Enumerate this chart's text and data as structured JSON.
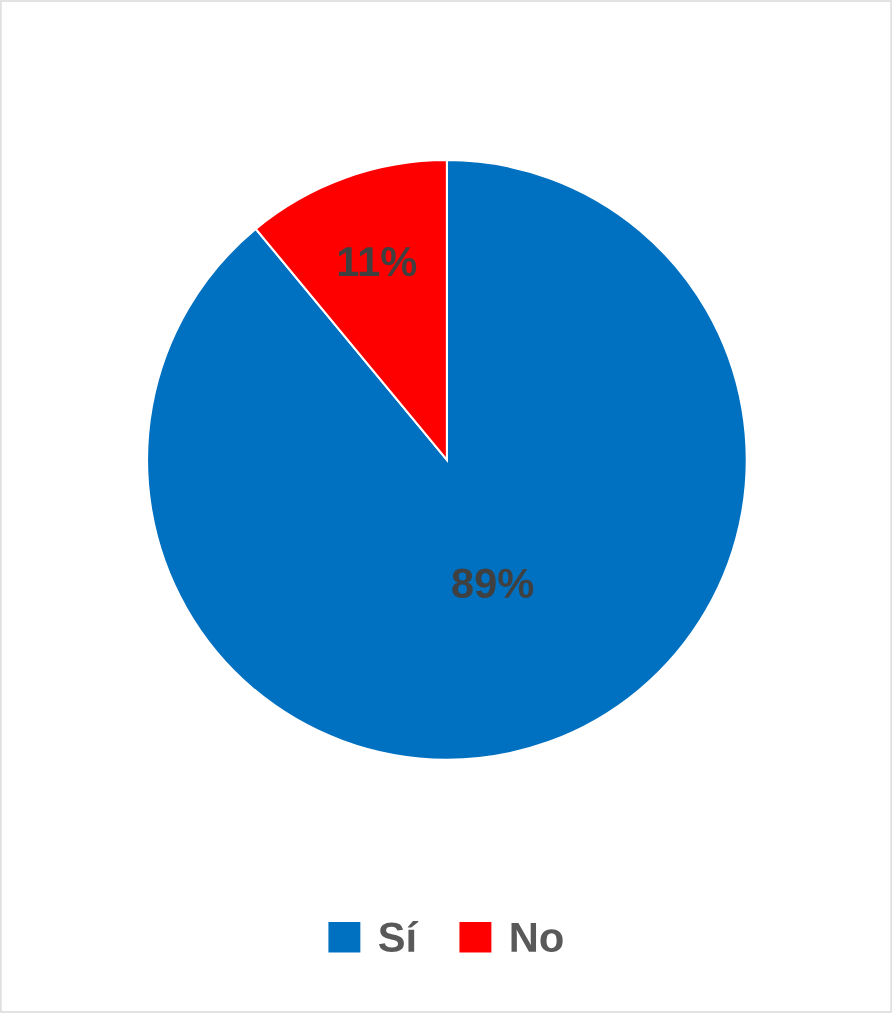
{
  "chart_data": {
    "type": "pie",
    "categories": [
      "Sí",
      "No"
    ],
    "values": [
      89,
      11
    ],
    "colors": [
      "#0070c0",
      "#ff0000"
    ],
    "value_labels": [
      "89%",
      "11%"
    ],
    "legend": "bottom"
  }
}
